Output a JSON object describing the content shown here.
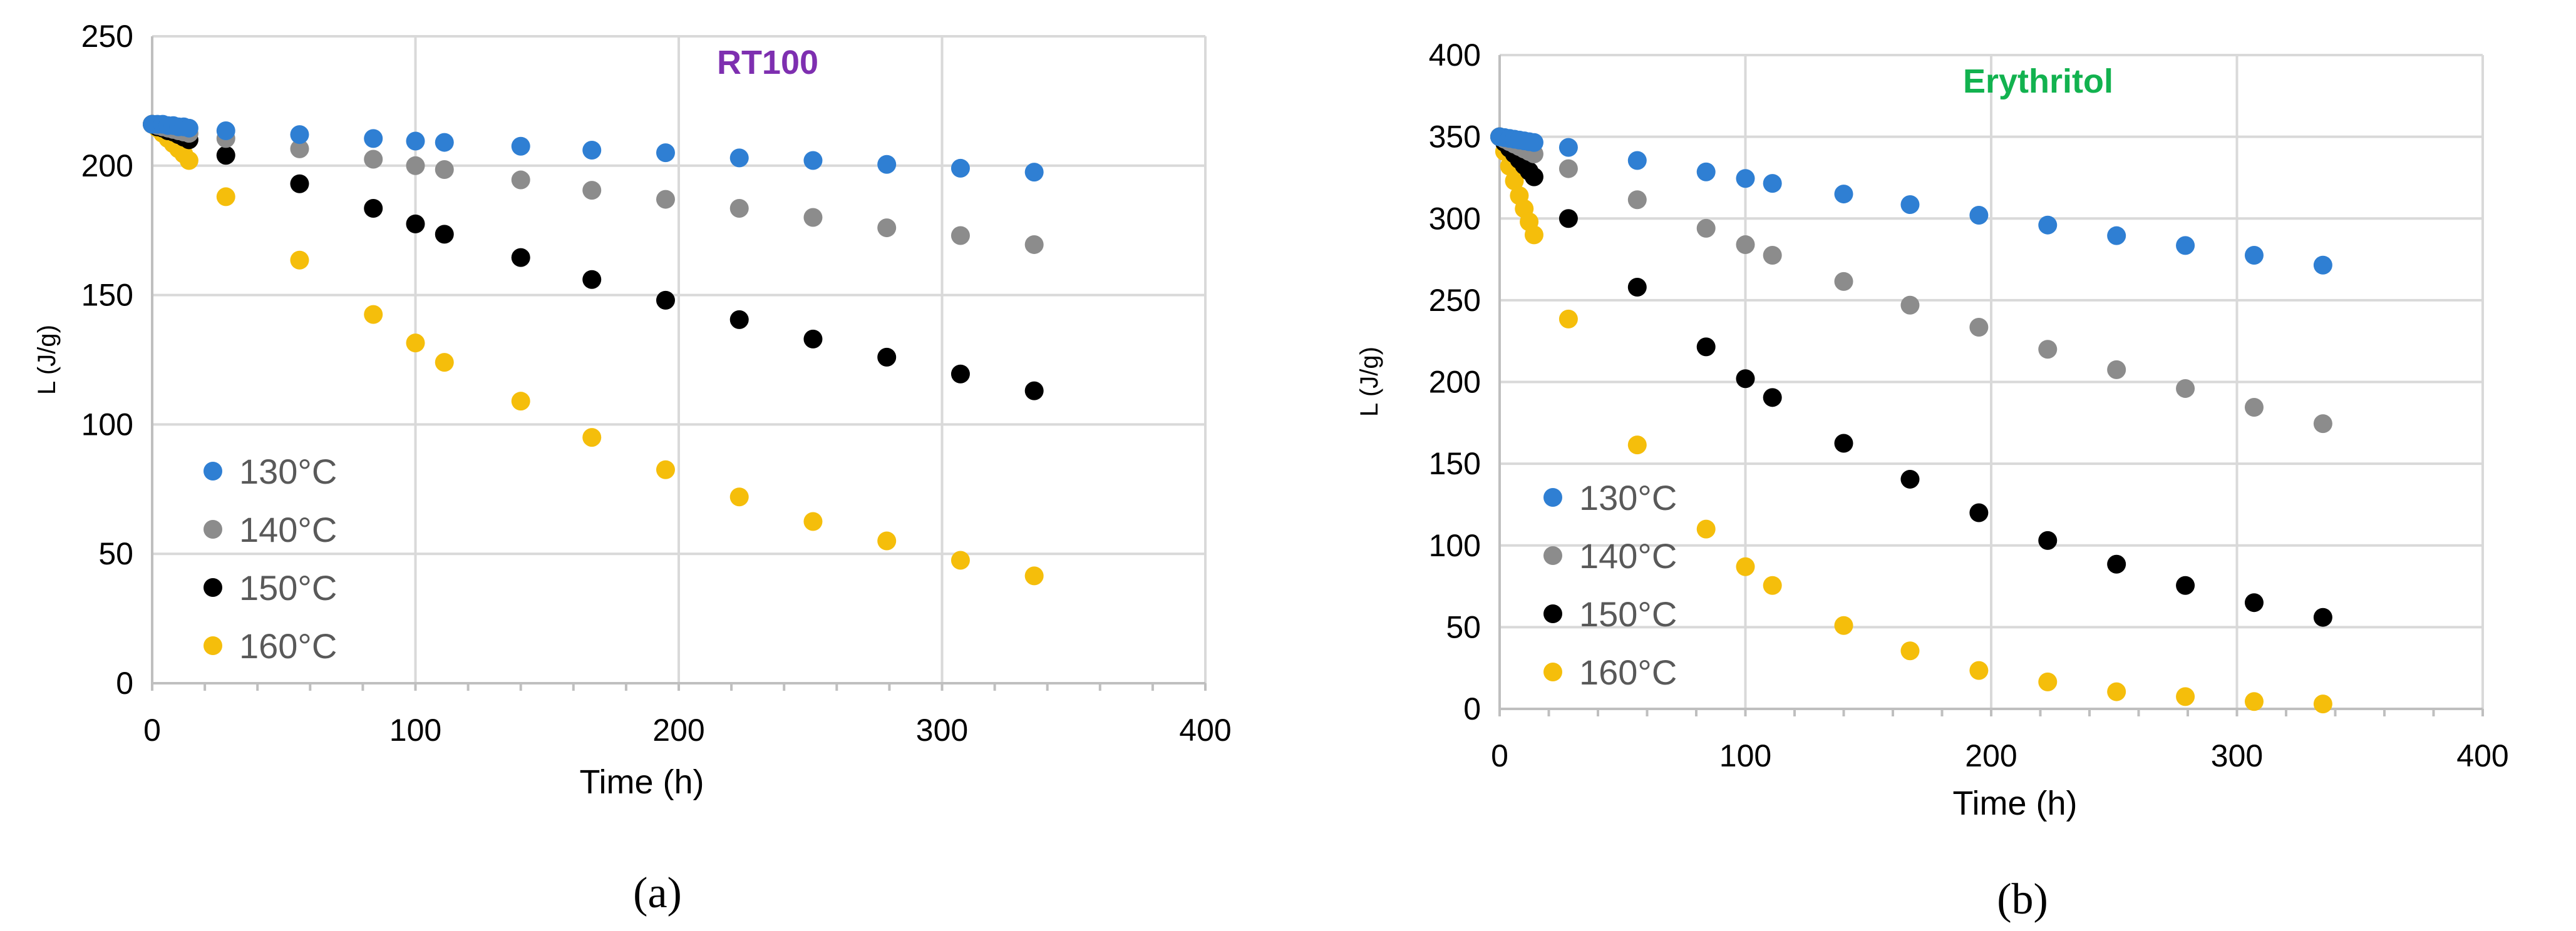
{
  "colors": {
    "series": [
      "#2F7FD3",
      "#8C8C8C",
      "#000000",
      "#F5BE0B"
    ],
    "grid": "#D9D9D9",
    "axis": "#BFBFBF",
    "tick_text": "#000000",
    "legend_text": "#595959",
    "title_a": "#7E2FB0",
    "title_b": "#12B24F"
  },
  "chart_data": [
    {
      "type": "scatter",
      "title": "RT100",
      "xlabel": "Time (h)",
      "ylabel": "L (J/g)",
      "caption": "(a)",
      "xlim": [
        0,
        400
      ],
      "ylim": [
        0,
        250
      ],
      "xticks": [
        0,
        100,
        200,
        300,
        400
      ],
      "xtick_labels": [
        "0",
        "100",
        "200",
        "300",
        "400"
      ],
      "yticks": [
        0,
        50,
        100,
        150,
        200,
        250
      ],
      "ytick_labels": [
        "0",
        "50",
        "100",
        "150",
        "200",
        "250"
      ],
      "legend_position": "bottom-left",
      "series": [
        {
          "name": "130°C",
          "x": [
            0,
            2,
            4,
            6,
            8,
            10,
            12,
            14,
            28,
            56,
            84,
            100,
            111,
            140,
            167,
            195,
            223,
            251,
            279,
            307,
            335
          ],
          "y": [
            216,
            216,
            216,
            215.5,
            215.5,
            215,
            215,
            214.5,
            213.5,
            212,
            210.5,
            209.5,
            209,
            207.5,
            206,
            205,
            203,
            202,
            200.5,
            199,
            197.5
          ]
        },
        {
          "name": "140°C",
          "x": [
            0,
            2,
            4,
            6,
            8,
            10,
            12,
            14,
            28,
            56,
            84,
            100,
            111,
            140,
            167,
            195,
            223,
            251,
            279,
            307,
            335
          ],
          "y": [
            216,
            215.5,
            215,
            214.5,
            214,
            213.5,
            213,
            212.5,
            210.5,
            206.5,
            202.5,
            200,
            198.5,
            194.5,
            190.5,
            187,
            183.5,
            180,
            176,
            173,
            169.5
          ]
        },
        {
          "name": "150°C",
          "x": [
            0,
            2,
            4,
            6,
            8,
            10,
            12,
            14,
            28,
            56,
            84,
            100,
            111,
            140,
            167,
            195,
            223,
            251,
            279,
            307,
            335
          ],
          "y": [
            216,
            215,
            214.5,
            213.5,
            213,
            212,
            211,
            210,
            204,
            193,
            183.5,
            177.5,
            173.5,
            164.5,
            156,
            148,
            140.5,
            133,
            126,
            119.5,
            113
          ]
        },
        {
          "name": "160°C",
          "x": [
            0,
            2,
            4,
            6,
            8,
            10,
            12,
            14,
            28,
            56,
            84,
            100,
            111,
            140,
            167,
            195,
            223,
            251,
            279,
            307,
            335
          ],
          "y": [
            216,
            214.5,
            212.5,
            210.5,
            208.5,
            206.5,
            204.5,
            202,
            188,
            163.5,
            142.5,
            131.5,
            124,
            109,
            95,
            82.5,
            72,
            62.5,
            55,
            47.5,
            41.5
          ]
        }
      ]
    },
    {
      "type": "scatter",
      "title": "Erythritol",
      "xlabel": "Time (h)",
      "ylabel": "L (J/g)",
      "caption": "(b)",
      "xlim": [
        0,
        400
      ],
      "ylim": [
        0,
        400
      ],
      "xticks": [
        0,
        100,
        200,
        300,
        400
      ],
      "xtick_labels": [
        "0",
        "100",
        "200",
        "300",
        "400"
      ],
      "yticks": [
        0,
        50,
        100,
        150,
        200,
        250,
        300,
        350,
        400
      ],
      "ytick_labels": [
        "0",
        "50",
        "100",
        "150",
        "200",
        "250",
        "300",
        "350",
        "400"
      ],
      "legend_position": "bottom-left",
      "series": [
        {
          "name": "130°C",
          "x": [
            0,
            2,
            4,
            6,
            8,
            10,
            12,
            14,
            28,
            56,
            84,
            100,
            111,
            140,
            167,
            195,
            223,
            251,
            279,
            307,
            335
          ],
          "y": [
            350,
            349.5,
            349,
            348.5,
            348,
            347.5,
            347,
            346.5,
            343.5,
            335.5,
            328.5,
            324.5,
            321.5,
            315,
            308.5,
            302,
            296,
            289.5,
            283.5,
            277.5,
            271.5
          ]
        },
        {
          "name": "140°C",
          "x": [
            0,
            2,
            4,
            6,
            8,
            10,
            12,
            14,
            28,
            56,
            84,
            100,
            111,
            140,
            167,
            195,
            223,
            251,
            279,
            307,
            335
          ],
          "y": [
            350,
            348.5,
            347,
            345.5,
            344,
            342.5,
            341,
            339.5,
            330.5,
            311.5,
            294,
            284,
            277.5,
            261.5,
            247,
            233.5,
            220,
            207.5,
            196,
            184.5,
            174.5
          ]
        },
        {
          "name": "150°C",
          "x": [
            0,
            2,
            4,
            6,
            8,
            10,
            12,
            14,
            28,
            56,
            84,
            100,
            111,
            140,
            167,
            195,
            223,
            251,
            279,
            307,
            335
          ],
          "y": [
            350,
            346.5,
            343,
            339.5,
            336,
            332.5,
            329,
            325.5,
            300,
            258,
            221.5,
            202,
            190.5,
            162.5,
            140.5,
            120,
            103,
            88.5,
            75.5,
            65,
            56
          ]
        },
        {
          "name": "160°C",
          "x": [
            0,
            2,
            4,
            6,
            8,
            10,
            12,
            14,
            28,
            56,
            84,
            100,
            111,
            140,
            167,
            195,
            223,
            251,
            279,
            307,
            335
          ],
          "y": [
            350,
            341,
            332,
            323,
            314,
            306,
            298,
            290,
            238.5,
            161.5,
            110,
            87,
            75.5,
            51,
            35.5,
            23.5,
            16.5,
            10.5,
            7.5,
            4.5,
            3
          ]
        }
      ]
    }
  ]
}
